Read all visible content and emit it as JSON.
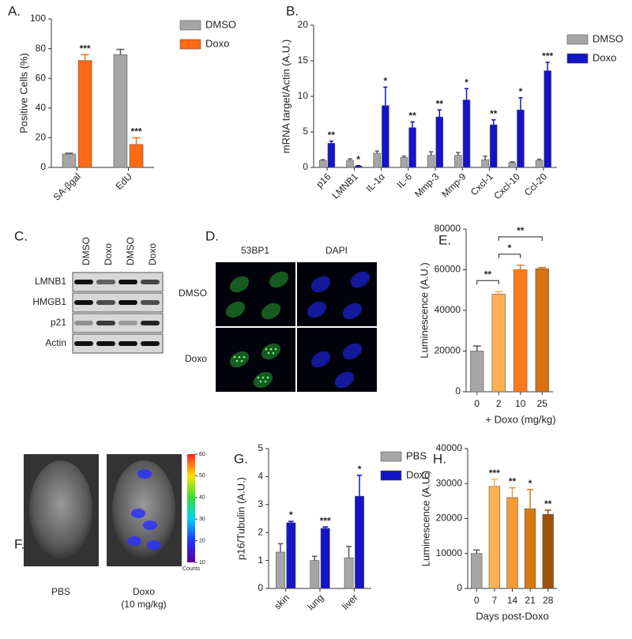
{
  "chart_data": [
    {
      "type": "bar",
      "label": "A.",
      "ylabel": "Positive Cells (%)",
      "categories": [
        "SA-βgal",
        "EdU"
      ],
      "ylim": [
        0,
        100
      ],
      "yticks": [
        0,
        20,
        40,
        60,
        80,
        100
      ],
      "series": [
        {
          "name": "DMSO",
          "color": "#a6a6a6",
          "values": [
            9,
            76
          ],
          "errors": [
            0.6,
            3.5
          ],
          "annotations": [
            null,
            null
          ]
        },
        {
          "name": "Doxo",
          "color": "#ff6a13",
          "values": [
            72,
            15.5
          ],
          "errors": [
            4,
            4.5
          ],
          "annotations": [
            "***",
            "***"
          ]
        }
      ]
    },
    {
      "type": "bar",
      "label": "B.",
      "ylabel": "mRNA target/Actin (A.U.)",
      "categories": [
        "p16",
        "LMNB1",
        "IL-1α",
        "IL-6",
        "Mmp-3",
        "Mmp-9",
        "Cxcl-1",
        "Cxcl-10",
        "Ccl-20"
      ],
      "ylim": [
        0,
        20
      ],
      "yticks": [
        0,
        5,
        10,
        15,
        20
      ],
      "series": [
        {
          "name": "DMSO",
          "color": "#a6a6a6",
          "values": [
            1,
            1,
            2,
            1.4,
            1.7,
            1.7,
            1.1,
            0.7,
            1
          ],
          "errors": [
            0.1,
            0.2,
            0.3,
            0.2,
            0.5,
            0.4,
            0.5,
            0.1,
            0.15
          ],
          "annotations": [
            null,
            null,
            null,
            null,
            null,
            null,
            null,
            null,
            null
          ]
        },
        {
          "name": "Doxo",
          "color": "#1414c8",
          "values": [
            3.4,
            0.2,
            8.7,
            5.6,
            7.1,
            9.5,
            6,
            8.1,
            13.6
          ],
          "errors": [
            0.3,
            0.05,
            2.6,
            0.8,
            1,
            1.6,
            0.7,
            1.7,
            1.2
          ],
          "annotations": [
            "**",
            "*",
            "*",
            "**",
            "**",
            "*",
            "**",
            "*",
            "***"
          ]
        }
      ]
    },
    {
      "type": "bar",
      "label": "E.",
      "ylabel": "Luminescence (A.U.)",
      "xlabel": "+ Doxo (mg/kg)",
      "categories": [
        "0",
        "2",
        "10",
        "25"
      ],
      "ylim": [
        0,
        80000
      ],
      "yticks": [
        0,
        20000,
        40000,
        60000,
        80000
      ],
      "values": [
        20000,
        48000,
        60000,
        60500
      ],
      "errors": [
        2500,
        1200,
        2200,
        600
      ],
      "colors": [
        "#a6a6a6",
        "#ffb050",
        "#ff7a1a",
        "#d9700f"
      ],
      "brackets": [
        {
          "between": [
            0,
            1
          ],
          "label": "**"
        },
        {
          "between": [
            1,
            2
          ],
          "label": "*"
        },
        {
          "between": [
            1,
            3
          ],
          "label": "**"
        }
      ]
    },
    {
      "type": "bar",
      "label": "G.",
      "ylabel": "p16/Tubulin (A.U.)",
      "categories": [
        "skin",
        "lung",
        "liver"
      ],
      "ylim": [
        0,
        5
      ],
      "yticks": [
        0,
        1,
        2,
        3,
        4,
        5
      ],
      "series": [
        {
          "name": "PBS",
          "color": "#a6a6a6",
          "values": [
            1.3,
            1.0,
            1.1
          ],
          "errors": [
            0.3,
            0.15,
            0.4
          ],
          "annotations": [
            null,
            null,
            null
          ]
        },
        {
          "name": "Doxo",
          "color": "#1414c8",
          "values": [
            2.35,
            2.15,
            3.3
          ],
          "errors": [
            0.05,
            0.05,
            0.75
          ],
          "annotations": [
            "*",
            "***",
            "*"
          ]
        }
      ]
    },
    {
      "type": "bar",
      "label": "H.",
      "ylabel": "Luminescence (A.U.)",
      "xlabel": "Days post-Doxo",
      "categories": [
        "0",
        "7",
        "14",
        "21",
        "28"
      ],
      "ylim": [
        0,
        40000
      ],
      "yticks": [
        0,
        10000,
        20000,
        30000,
        40000
      ],
      "values": [
        10000,
        29200,
        26000,
        22800,
        21200
      ],
      "errors": [
        1000,
        2000,
        2800,
        5500,
        1200
      ],
      "colors": [
        "#a6a6a6",
        "#ffb050",
        "#f59a30",
        "#d97a10",
        "#9c5208"
      ],
      "annotations": [
        null,
        "***",
        "**",
        "*",
        "**"
      ]
    }
  ],
  "blot": {
    "label": "C.",
    "lanes": [
      "DMSO",
      "Doxo",
      "DMSO",
      "Doxo"
    ],
    "rows": [
      "LMNB1",
      "HMGB1",
      "p21",
      "Actin"
    ]
  },
  "microscopy": {
    "label": "D.",
    "columns": [
      "53BP1",
      "DAPI"
    ],
    "rows": [
      "DMSO",
      "Doxo"
    ]
  },
  "imaging": {
    "label": "F.",
    "groups": [
      "PBS",
      "Doxo"
    ],
    "dose": "(10 mg/kg)",
    "colorbar": {
      "ticks": [
        60,
        50,
        40,
        30,
        20,
        10
      ],
      "range": [
        10,
        60
      ],
      "label": "Counts"
    }
  }
}
